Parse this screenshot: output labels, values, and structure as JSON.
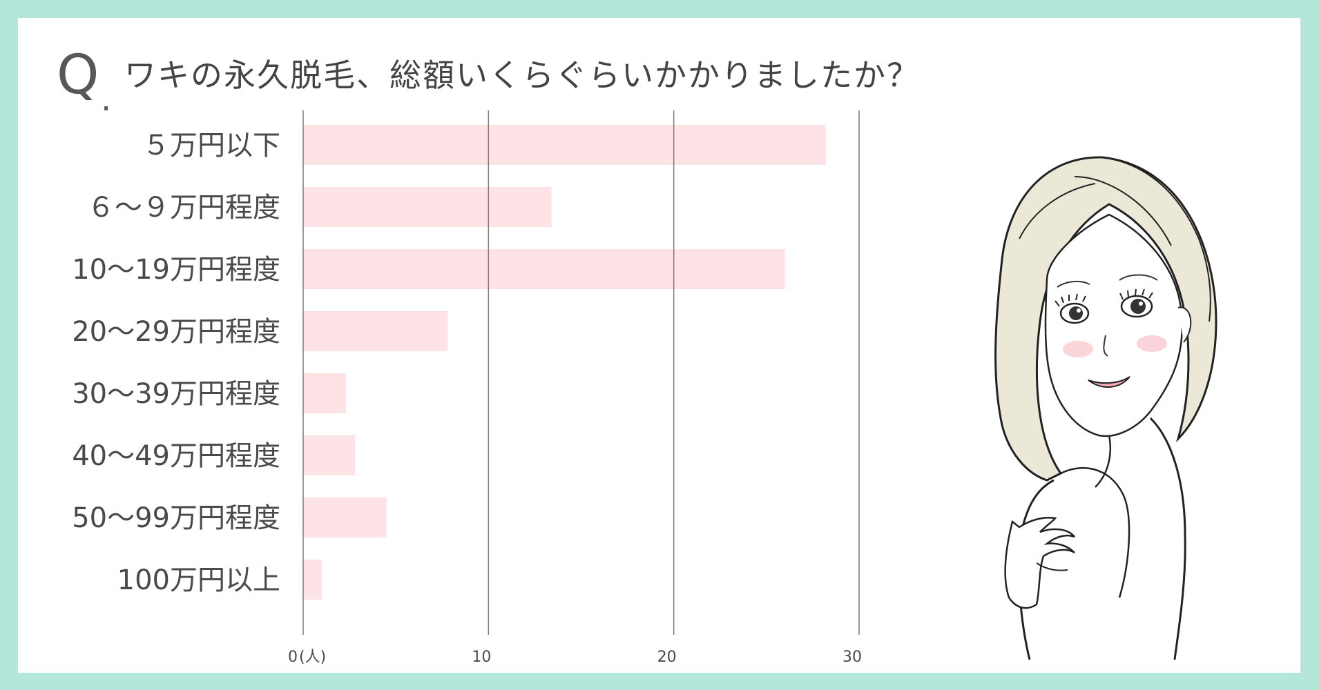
{
  "question": {
    "mark": "Q",
    "dot": ".",
    "text": "ワキの永久脱毛、総額いくらぐらいかかりましたか？"
  },
  "colors": {
    "frame": "#b5e6da",
    "bar": "#fde3e5",
    "grid": "#7a7a7a",
    "text": "#4a4a4a"
  },
  "chart_data": {
    "type": "bar",
    "orientation": "horizontal",
    "title": "ワキの永久脱毛、総額いくらぐらいかかりましたか？",
    "categories": [
      "５万円以下",
      "６～９万円程度",
      "10～19万円程度",
      "20～29万円程度",
      "30～39万円程度",
      "40～49万円程度",
      "50～99万円程度",
      "100万円以上"
    ],
    "values": [
      28.2,
      13.4,
      26,
      7.8,
      2.3,
      2.8,
      4.5,
      1
    ],
    "x_ticks": [
      "0",
      "10",
      "20",
      "30"
    ],
    "x_unit": "(人)",
    "xlim": [
      0,
      30
    ],
    "grid": true
  }
}
